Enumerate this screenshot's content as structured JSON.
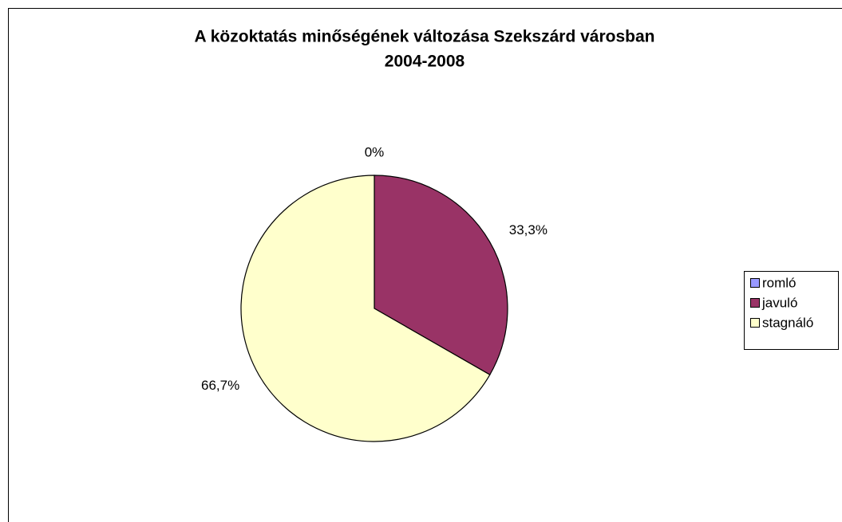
{
  "chart_data": {
    "type": "pie",
    "title": [
      "A közoktatás minőségének változása Szekszárd városban",
      "2004-2008"
    ],
    "categories": [
      "romló",
      "javuló",
      "stagnáló"
    ],
    "values": [
      0,
      33.3,
      66.7
    ],
    "value_labels": [
      "0%",
      "33,3%",
      "66,7%"
    ],
    "colors": [
      "#9999ff",
      "#993366",
      "#ffffcc"
    ],
    "legend": "right"
  }
}
